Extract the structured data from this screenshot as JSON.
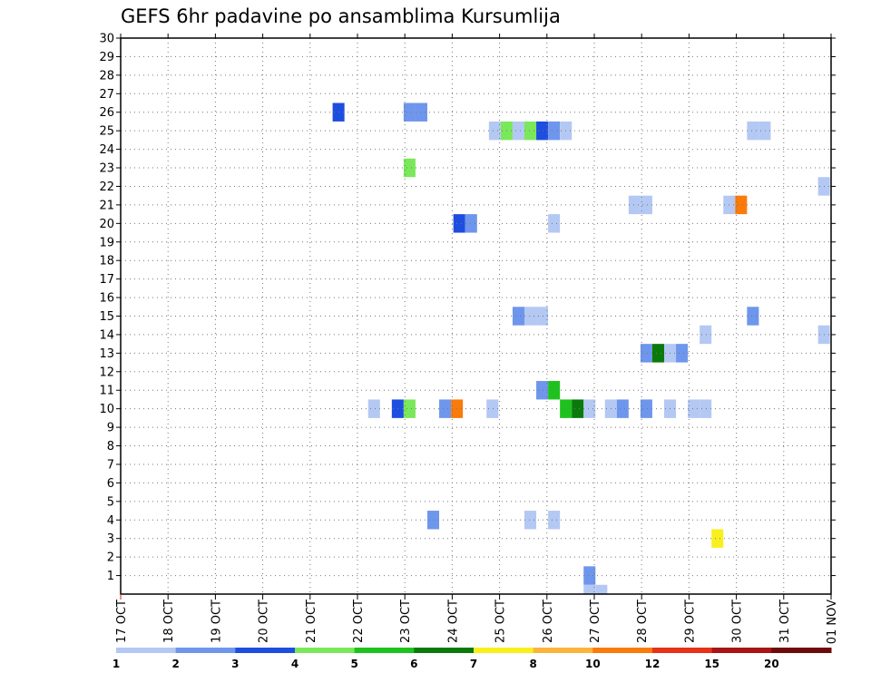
{
  "chart_data": {
    "type": "heatmap",
    "title": "GEFS 6hr padavine po ansamblima Kursumlija",
    "xlabel": "",
    "ylabel": "",
    "x_tick_labels": [
      "17 OCT",
      "18 OCT",
      "19 OCT",
      "20 OCT",
      "21 OCT",
      "22 OCT",
      "23 OCT",
      "24 OCT",
      "25 OCT",
      "26 OCT",
      "27 OCT",
      "28 OCT",
      "29 OCT",
      "30 OCT",
      "31 OCT",
      "01 NOV"
    ],
    "y_tick_labels": [
      "1",
      "2",
      "3",
      "4",
      "5",
      "6",
      "7",
      "8",
      "9",
      "10",
      "11",
      "12",
      "13",
      "14",
      "15",
      "16",
      "17",
      "18",
      "19",
      "20",
      "21",
      "22",
      "23",
      "24",
      "25",
      "26",
      "27",
      "28",
      "29",
      "30"
    ],
    "xlim_days": [
      0,
      15
    ],
    "ylim": [
      0,
      30
    ],
    "grid": true,
    "legend": {
      "placement": "bottom",
      "colors": [
        "#b4c8f4",
        "#6e96ec",
        "#1e4ee0",
        "#7ae85a",
        "#1ec21e",
        "#0a7a0a",
        "#f8f01e",
        "#fcb43c",
        "#fa7a0a",
        "#e63219",
        "#aa1414",
        "#6e0a0a"
      ],
      "labels": [
        "1",
        "2",
        "3",
        "4",
        "5",
        "6",
        "7",
        "8",
        "10",
        "12",
        "15",
        "20"
      ]
    },
    "cells": [
      {
        "m": 26,
        "d": 4.6,
        "c": 3
      },
      {
        "m": 26,
        "d": 6.1,
        "c": 2
      },
      {
        "m": 26,
        "d": 6.35,
        "c": 2
      },
      {
        "m": 25,
        "d": 7.9,
        "c": 1
      },
      {
        "m": 25,
        "d": 8.15,
        "c": 4
      },
      {
        "m": 25,
        "d": 8.4,
        "c": 1
      },
      {
        "m": 25,
        "d": 8.65,
        "c": 4
      },
      {
        "m": 25,
        "d": 8.9,
        "c": 3
      },
      {
        "m": 25,
        "d": 9.15,
        "c": 2
      },
      {
        "m": 25,
        "d": 9.4,
        "c": 1
      },
      {
        "m": 25,
        "d": 13.35,
        "c": 1
      },
      {
        "m": 25,
        "d": 13.6,
        "c": 1
      },
      {
        "m": 23,
        "d": 6.1,
        "c": 4
      },
      {
        "m": 22,
        "d": 14.85,
        "c": 1
      },
      {
        "m": 21,
        "d": 10.85,
        "c": 1
      },
      {
        "m": 21,
        "d": 11.1,
        "c": 1
      },
      {
        "m": 21,
        "d": 12.85,
        "c": 1
      },
      {
        "m": 21,
        "d": 13.1,
        "c": 9
      },
      {
        "m": 20,
        "d": 7.15,
        "c": 3
      },
      {
        "m": 20,
        "d": 7.4,
        "c": 2
      },
      {
        "m": 20,
        "d": 9.15,
        "c": 1
      },
      {
        "m": 15,
        "d": 8.4,
        "c": 2
      },
      {
        "m": 15,
        "d": 8.65,
        "c": 1
      },
      {
        "m": 15,
        "d": 8.9,
        "c": 1
      },
      {
        "m": 15,
        "d": 13.35,
        "c": 2
      },
      {
        "m": 14,
        "d": 12.35,
        "c": 1
      },
      {
        "m": 14,
        "d": 14.85,
        "c": 1
      },
      {
        "m": 13,
        "d": 11.1,
        "c": 2
      },
      {
        "m": 13,
        "d": 11.35,
        "c": 6
      },
      {
        "m": 13,
        "d": 11.6,
        "c": 1
      },
      {
        "m": 13,
        "d": 11.85,
        "c": 2
      },
      {
        "m": 11,
        "d": 8.9,
        "c": 2
      },
      {
        "m": 11,
        "d": 9.15,
        "c": 5
      },
      {
        "m": 10,
        "d": 5.35,
        "c": 1
      },
      {
        "m": 10,
        "d": 5.85,
        "c": 3
      },
      {
        "m": 10,
        "d": 6.1,
        "c": 4
      },
      {
        "m": 10,
        "d": 6.85,
        "c": 2
      },
      {
        "m": 10,
        "d": 7.1,
        "c": 9
      },
      {
        "m": 10,
        "d": 7.85,
        "c": 1
      },
      {
        "m": 10,
        "d": 9.4,
        "c": 5
      },
      {
        "m": 10,
        "d": 9.65,
        "c": 6
      },
      {
        "m": 10,
        "d": 9.9,
        "c": 1
      },
      {
        "m": 10,
        "d": 10.35,
        "c": 1
      },
      {
        "m": 10,
        "d": 10.6,
        "c": 2
      },
      {
        "m": 10,
        "d": 11.1,
        "c": 2
      },
      {
        "m": 10,
        "d": 11.6,
        "c": 1
      },
      {
        "m": 10,
        "d": 12.1,
        "c": 1
      },
      {
        "m": 10,
        "d": 12.35,
        "c": 1
      },
      {
        "m": 4,
        "d": 6.6,
        "c": 2
      },
      {
        "m": 4,
        "d": 8.65,
        "c": 1
      },
      {
        "m": 4,
        "d": 9.15,
        "c": 1
      },
      {
        "m": 3,
        "d": 12.6,
        "c": 7
      },
      {
        "m": 1,
        "d": 9.9,
        "c": 2
      },
      {
        "m": 0,
        "d": 9.9,
        "c": 1
      },
      {
        "m": 0,
        "d": 10.15,
        "c": 1
      }
    ]
  }
}
